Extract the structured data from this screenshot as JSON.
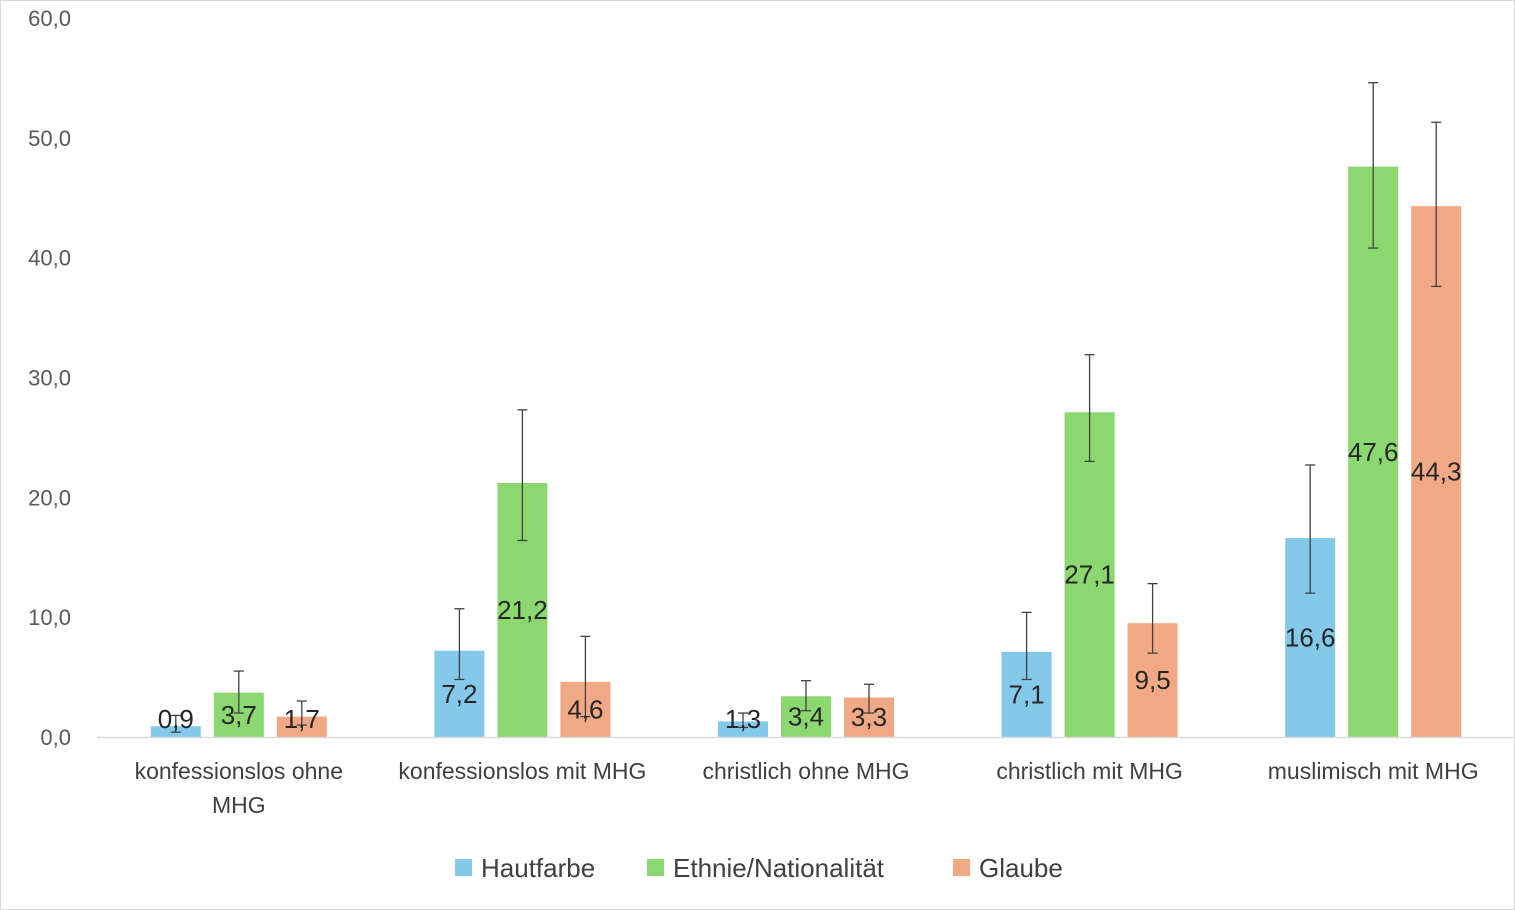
{
  "chart_data": {
    "type": "bar",
    "categories": [
      [
        "konfessionslos ohne",
        "MHG"
      ],
      [
        "konfessionslos mit MHG"
      ],
      [
        "christlich ohne MHG"
      ],
      [
        "christlich mit MHG"
      ],
      [
        "muslimisch mit MHG"
      ]
    ],
    "series": [
      {
        "name": "Hautfarbe",
        "color": "#84C9EA",
        "values": [
          0.9,
          7.2,
          1.3,
          7.1,
          16.6
        ],
        "labels": [
          "0,9",
          "7,2",
          "1,3",
          "7,1",
          "16,6"
        ],
        "error_low": [
          0.4,
          4.8,
          0.8,
          4.8,
          12.0
        ],
        "error_high": [
          1.8,
          10.7,
          2.0,
          10.4,
          22.7
        ]
      },
      {
        "name": "Ethnie/Nationalität",
        "color": "#8CD870",
        "values": [
          3.7,
          21.2,
          3.4,
          27.1,
          47.6
        ],
        "labels": [
          "3,7",
          "21,2",
          "3,4",
          "27,1",
          "47,6"
        ],
        "error_low": [
          2.0,
          16.4,
          2.2,
          23.0,
          40.8
        ],
        "error_high": [
          5.5,
          27.3,
          4.7,
          31.9,
          54.6
        ]
      },
      {
        "name": "Glaube",
        "color": "#F1A985",
        "values": [
          1.7,
          4.6,
          3.3,
          9.5,
          44.3
        ],
        "labels": [
          "1,7",
          "4,6",
          "3,3",
          "9,5",
          "44,3"
        ],
        "error_low": [
          1.0,
          1.7,
          2.0,
          7.0,
          37.6
        ],
        "error_high": [
          3.0,
          8.4,
          4.4,
          12.8,
          51.3
        ]
      }
    ],
    "ylim": [
      0,
      60
    ],
    "yticks": [
      0,
      10,
      20,
      30,
      40,
      50,
      60
    ],
    "ytick_labels": [
      "0,0",
      "10,0",
      "20,0",
      "30,0",
      "40,0",
      "50,0",
      "60,0"
    ],
    "title": "",
    "xlabel": "",
    "ylabel": "",
    "grid": false,
    "legend_position": "bottom"
  }
}
